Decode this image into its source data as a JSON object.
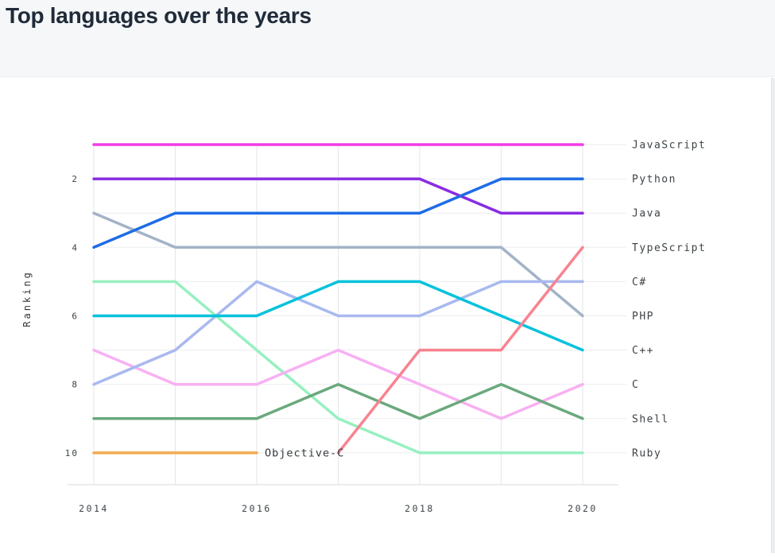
{
  "page": {
    "title": "Top languages over the years"
  },
  "chart_data": {
    "type": "line",
    "subtype": "bump-chart",
    "title": "Top languages over the years",
    "xlabel": "",
    "ylabel": "Ranking",
    "x": [
      2014,
      2015,
      2016,
      2017,
      2018,
      2019,
      2020
    ],
    "xticks": [
      "2014",
      "2016",
      "2018",
      "2020"
    ],
    "yticks": [
      "2",
      "4",
      "6",
      "8",
      "10"
    ],
    "y_axis": {
      "label": "Ranking",
      "inverted": true,
      "range": [
        1,
        10
      ]
    },
    "grid": true,
    "legend_position": "right",
    "legend": [
      "JavaScript",
      "Python",
      "Java",
      "TypeScript",
      "C#",
      "PHP",
      "C++",
      "C",
      "Shell",
      "Ruby"
    ],
    "series": [
      {
        "name": "JavaScript",
        "color": "#f23be6",
        "ranks": [
          1,
          1,
          1,
          1,
          1,
          1,
          1
        ]
      },
      {
        "name": "Python",
        "color": "#1e6ce6",
        "ranks": [
          4,
          3,
          3,
          3,
          3,
          2,
          2
        ]
      },
      {
        "name": "Java",
        "color": "#8a2ce2",
        "ranks": [
          2,
          2,
          2,
          2,
          2,
          3,
          3
        ]
      },
      {
        "name": "TypeScript",
        "color": "#f98290",
        "ranks": [
          null,
          null,
          null,
          10,
          7,
          7,
          4
        ]
      },
      {
        "name": "C#",
        "color": "#a9b9ef",
        "ranks": [
          8,
          7,
          5,
          6,
          6,
          5,
          5
        ]
      },
      {
        "name": "PHP",
        "color": "#a3b3c7",
        "ranks": [
          3,
          4,
          4,
          4,
          4,
          4,
          6
        ]
      },
      {
        "name": "C++",
        "color": "#06c2dc",
        "ranks": [
          6,
          6,
          6,
          5,
          5,
          6,
          7
        ]
      },
      {
        "name": "C",
        "color": "#f8b0f2",
        "ranks": [
          7,
          8,
          8,
          7,
          8,
          9,
          8
        ]
      },
      {
        "name": "Shell",
        "color": "#6aa97d",
        "ranks": [
          9,
          9,
          9,
          8,
          9,
          8,
          9
        ]
      },
      {
        "name": "Ruby",
        "color": "#97f0c0",
        "ranks": [
          5,
          5,
          7,
          9,
          10,
          10,
          10
        ]
      },
      {
        "name": "Objective-C",
        "color": "#f5a950",
        "ranks": [
          10,
          10,
          10,
          null,
          null,
          null,
          null
        ]
      }
    ],
    "annotations": [
      {
        "text": "Objective-C",
        "year": 2016,
        "rank": 10,
        "position": "right-of-line-end"
      }
    ],
    "colors": {
      "grid_vertical": "#e4e6e8",
      "grid_horizontal": "#ecedef",
      "axis_line": "#d7dadc",
      "chart_text": "#3d4347",
      "title_text": "#202b39"
    }
  }
}
